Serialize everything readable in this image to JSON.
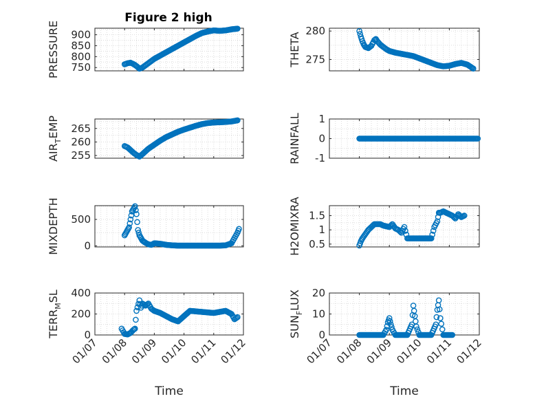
{
  "figure_title": "Figure 2 high",
  "colors": {
    "series": "#0072BD",
    "axis": "#262626",
    "grid": "#dcdcdc"
  },
  "x_tick_labels": [
    "01/07",
    "01/08",
    "01/09",
    "01/10",
    "01/11",
    "01/12"
  ],
  "x_axis_label": "Time",
  "chart_data": [
    {
      "type": "scatter",
      "title": "Figure 2 high",
      "ylabel_parts": [
        "PRESSURE"
      ],
      "xlabel": "",
      "xlim": [
        7,
        12
      ],
      "ylim": [
        735,
        930
      ],
      "y_ticks": [
        750,
        800,
        850,
        900
      ],
      "x_tick_labels": [
        "01/07",
        "01/08",
        "01/09",
        "01/10",
        "01/11",
        "01/12"
      ],
      "grid": true,
      "marker": "open-circle",
      "x": [
        8.0,
        8.1,
        8.2,
        8.3,
        8.4,
        8.5,
        8.6,
        8.7,
        8.8,
        8.9,
        9.0,
        9.2,
        9.4,
        9.6,
        9.8,
        10.0,
        10.2,
        10.4,
        10.6,
        10.8,
        11.0,
        11.2,
        11.4,
        11.6,
        11.8
      ],
      "y": [
        765,
        770,
        772,
        766,
        757,
        745,
        750,
        760,
        770,
        780,
        790,
        805,
        820,
        835,
        850,
        865,
        880,
        895,
        908,
        915,
        920,
        918,
        920,
        925,
        928
      ]
    },
    {
      "type": "scatter",
      "title": "",
      "ylabel_parts": [
        "THETA"
      ],
      "xlabel": "",
      "xlim": [
        7,
        12
      ],
      "ylim": [
        273,
        280.5
      ],
      "y_ticks": [
        275,
        280
      ],
      "x_tick_labels": [
        "01/07",
        "01/08",
        "01/09",
        "01/10",
        "01/11",
        "01/12"
      ],
      "grid": true,
      "marker": "open-circle",
      "x": [
        8.0,
        8.05,
        8.1,
        8.15,
        8.2,
        8.3,
        8.4,
        8.5,
        8.55,
        8.6,
        8.7,
        8.8,
        8.9,
        9.0,
        9.2,
        9.4,
        9.6,
        9.8,
        10.0,
        10.2,
        10.4,
        10.6,
        10.8,
        11.0,
        11.2,
        11.4,
        11.6,
        11.8
      ],
      "y": [
        280,
        279,
        278.2,
        277.6,
        277.2,
        277,
        277.4,
        278.4,
        278.6,
        278.2,
        277.6,
        277.2,
        276.8,
        276.5,
        276.2,
        276,
        275.8,
        275.6,
        275.2,
        274.8,
        274.4,
        274,
        273.8,
        273.9,
        274.2,
        274.4,
        274.1,
        273.4
      ]
    },
    {
      "type": "scatter",
      "title": "",
      "ylabel_parts": [
        "AIR",
        "T",
        "EMP"
      ],
      "xlabel": "",
      "xlim": [
        7,
        12
      ],
      "ylim": [
        254,
        268.5
      ],
      "y_ticks": [
        255,
        260,
        265
      ],
      "x_tick_labels": [
        "01/07",
        "01/08",
        "01/09",
        "01/10",
        "01/11",
        "01/12"
      ],
      "grid": true,
      "marker": "open-circle",
      "x": [
        8.0,
        8.1,
        8.2,
        8.3,
        8.4,
        8.5,
        8.6,
        8.7,
        8.8,
        9.0,
        9.2,
        9.4,
        9.6,
        9.8,
        10.0,
        10.2,
        10.4,
        10.6,
        10.8,
        11.0,
        11.2,
        11.4,
        11.6,
        11.8
      ],
      "y": [
        258.5,
        258,
        257,
        256,
        255.2,
        254.6,
        255.5,
        256.5,
        257.5,
        259,
        260.5,
        261.8,
        262.8,
        263.8,
        264.6,
        265.3,
        266,
        266.6,
        267,
        267.2,
        267.3,
        267.4,
        267.6,
        268
      ]
    },
    {
      "type": "scatter",
      "title": "",
      "ylabel_parts": [
        "RAINFALL"
      ],
      "xlabel": "",
      "xlim": [
        7,
        12
      ],
      "ylim": [
        -1,
        1
      ],
      "y_ticks": [
        -1,
        0,
        1
      ],
      "x_tick_labels": [
        "01/07",
        "01/08",
        "01/09",
        "01/10",
        "01/11",
        "01/12"
      ],
      "grid": true,
      "marker": "open-circle",
      "x": [
        8.0,
        8.2,
        8.4,
        8.6,
        8.8,
        9.0,
        9.2,
        9.4,
        9.6,
        9.8,
        10.0,
        10.2,
        10.4,
        10.6,
        10.8,
        11.0,
        11.2,
        11.4,
        11.6,
        11.8,
        11.95
      ],
      "y": [
        0,
        0,
        0,
        0,
        0,
        0,
        0,
        0,
        0,
        0,
        0,
        0,
        0,
        0,
        0,
        0,
        0,
        0,
        0,
        0,
        0
      ]
    },
    {
      "type": "scatter",
      "title": "",
      "ylabel_parts": [
        "MIXDEPTH"
      ],
      "xlabel": "",
      "xlim": [
        7,
        12
      ],
      "ylim": [
        -20,
        760
      ],
      "y_ticks": [
        0,
        500
      ],
      "x_tick_labels": [
        "01/07",
        "01/08",
        "01/09",
        "01/10",
        "01/11",
        "01/12"
      ],
      "grid": true,
      "marker": "open-circle",
      "x": [
        8.0,
        8.05,
        8.1,
        8.15,
        8.2,
        8.25,
        8.3,
        8.35,
        8.4,
        8.45,
        8.5,
        8.55,
        8.6,
        8.65,
        8.7,
        8.8,
        8.9,
        9.0,
        9.2,
        9.4,
        9.6,
        9.8,
        10.0,
        10.2,
        10.4,
        10.6,
        10.8,
        11.0,
        11.2,
        11.4,
        11.6,
        11.7,
        11.8,
        11.85
      ],
      "y": [
        200,
        250,
        300,
        350,
        500,
        650,
        700,
        750,
        600,
        300,
        200,
        150,
        100,
        80,
        60,
        30,
        20,
        50,
        40,
        20,
        10,
        5,
        5,
        5,
        5,
        5,
        5,
        5,
        5,
        10,
        50,
        150,
        250,
        320
      ]
    },
    {
      "type": "scatter",
      "title": "",
      "ylabel_parts": [
        "H2OMIXRA"
      ],
      "xlabel": "",
      "xlim": [
        7,
        12
      ],
      "ylim": [
        0.4,
        1.85
      ],
      "y_ticks": [
        0.5,
        1,
        1.5
      ],
      "x_tick_labels": [
        "01/07",
        "01/08",
        "01/09",
        "01/10",
        "01/11",
        "01/12"
      ],
      "grid": true,
      "marker": "open-circle",
      "x": [
        8.0,
        8.05,
        8.1,
        8.2,
        8.3,
        8.4,
        8.5,
        8.6,
        8.7,
        8.8,
        9.0,
        9.1,
        9.2,
        9.3,
        9.4,
        9.5,
        9.6,
        9.7,
        9.8,
        9.9,
        10.0,
        10.2,
        10.4,
        10.5,
        10.6,
        10.65,
        10.7,
        10.8,
        10.9,
        11.0,
        11.1,
        11.2,
        11.3,
        11.4,
        11.5
      ],
      "y": [
        0.45,
        0.6,
        0.7,
        0.85,
        1.0,
        1.1,
        1.2,
        1.2,
        1.2,
        1.15,
        1.1,
        1.2,
        1.05,
        1.0,
        0.9,
        1.1,
        0.7,
        0.7,
        0.7,
        0.7,
        0.7,
        0.7,
        0.7,
        1.1,
        1.3,
        1.6,
        1.6,
        1.65,
        1.6,
        1.55,
        1.5,
        1.4,
        1.55,
        1.45,
        1.5
      ]
    },
    {
      "type": "scatter",
      "title": "",
      "ylabel_parts": [
        "TERR",
        "M",
        "SL"
      ],
      "xlabel": "Time",
      "xlim": [
        7,
        12
      ],
      "ylim": [
        0,
        400
      ],
      "y_ticks": [
        0,
        200,
        400
      ],
      "x_tick_labels": [
        "01/07",
        "01/08",
        "01/09",
        "01/10",
        "01/11",
        "01/12"
      ],
      "grid": true,
      "marker": "open-circle",
      "x": [
        7.9,
        8.0,
        8.1,
        8.2,
        8.3,
        8.35,
        8.4,
        8.5,
        8.55,
        8.6,
        8.7,
        8.8,
        8.9,
        9.0,
        9.2,
        9.4,
        9.6,
        9.8,
        10.0,
        10.2,
        10.4,
        10.6,
        10.8,
        11.0,
        11.2,
        11.4,
        11.6,
        11.7,
        11.8
      ],
      "y": [
        60,
        10,
        5,
        20,
        50,
        60,
        230,
        330,
        260,
        300,
        280,
        300,
        250,
        230,
        210,
        180,
        150,
        130,
        180,
        230,
        225,
        220,
        215,
        210,
        220,
        230,
        200,
        150,
        170
      ]
    },
    {
      "type": "scatter",
      "title": "",
      "ylabel_parts": [
        "SUN",
        "F",
        "LUX"
      ],
      "xlabel": "Time",
      "xlim": [
        7,
        12
      ],
      "ylim": [
        0,
        20
      ],
      "y_ticks": [
        0,
        10,
        20
      ],
      "x_tick_labels": [
        "01/07",
        "01/08",
        "01/09",
        "01/10",
        "01/11",
        "01/12"
      ],
      "grid": true,
      "marker": "open-circle",
      "x": [
        8.0,
        8.2,
        8.4,
        8.6,
        8.8,
        8.9,
        8.95,
        9.0,
        9.05,
        9.1,
        9.2,
        9.4,
        9.6,
        9.75,
        9.8,
        9.85,
        9.9,
        10.0,
        10.2,
        10.4,
        10.55,
        10.6,
        10.65,
        10.7,
        10.8,
        11.0,
        11.1
      ],
      "y": [
        0,
        0,
        0,
        0,
        0,
        2.5,
        6,
        8,
        5,
        2.5,
        0,
        0,
        0,
        5,
        14,
        9,
        4,
        0,
        0,
        0,
        5,
        12,
        16.5,
        8,
        0,
        0,
        0
      ]
    }
  ]
}
